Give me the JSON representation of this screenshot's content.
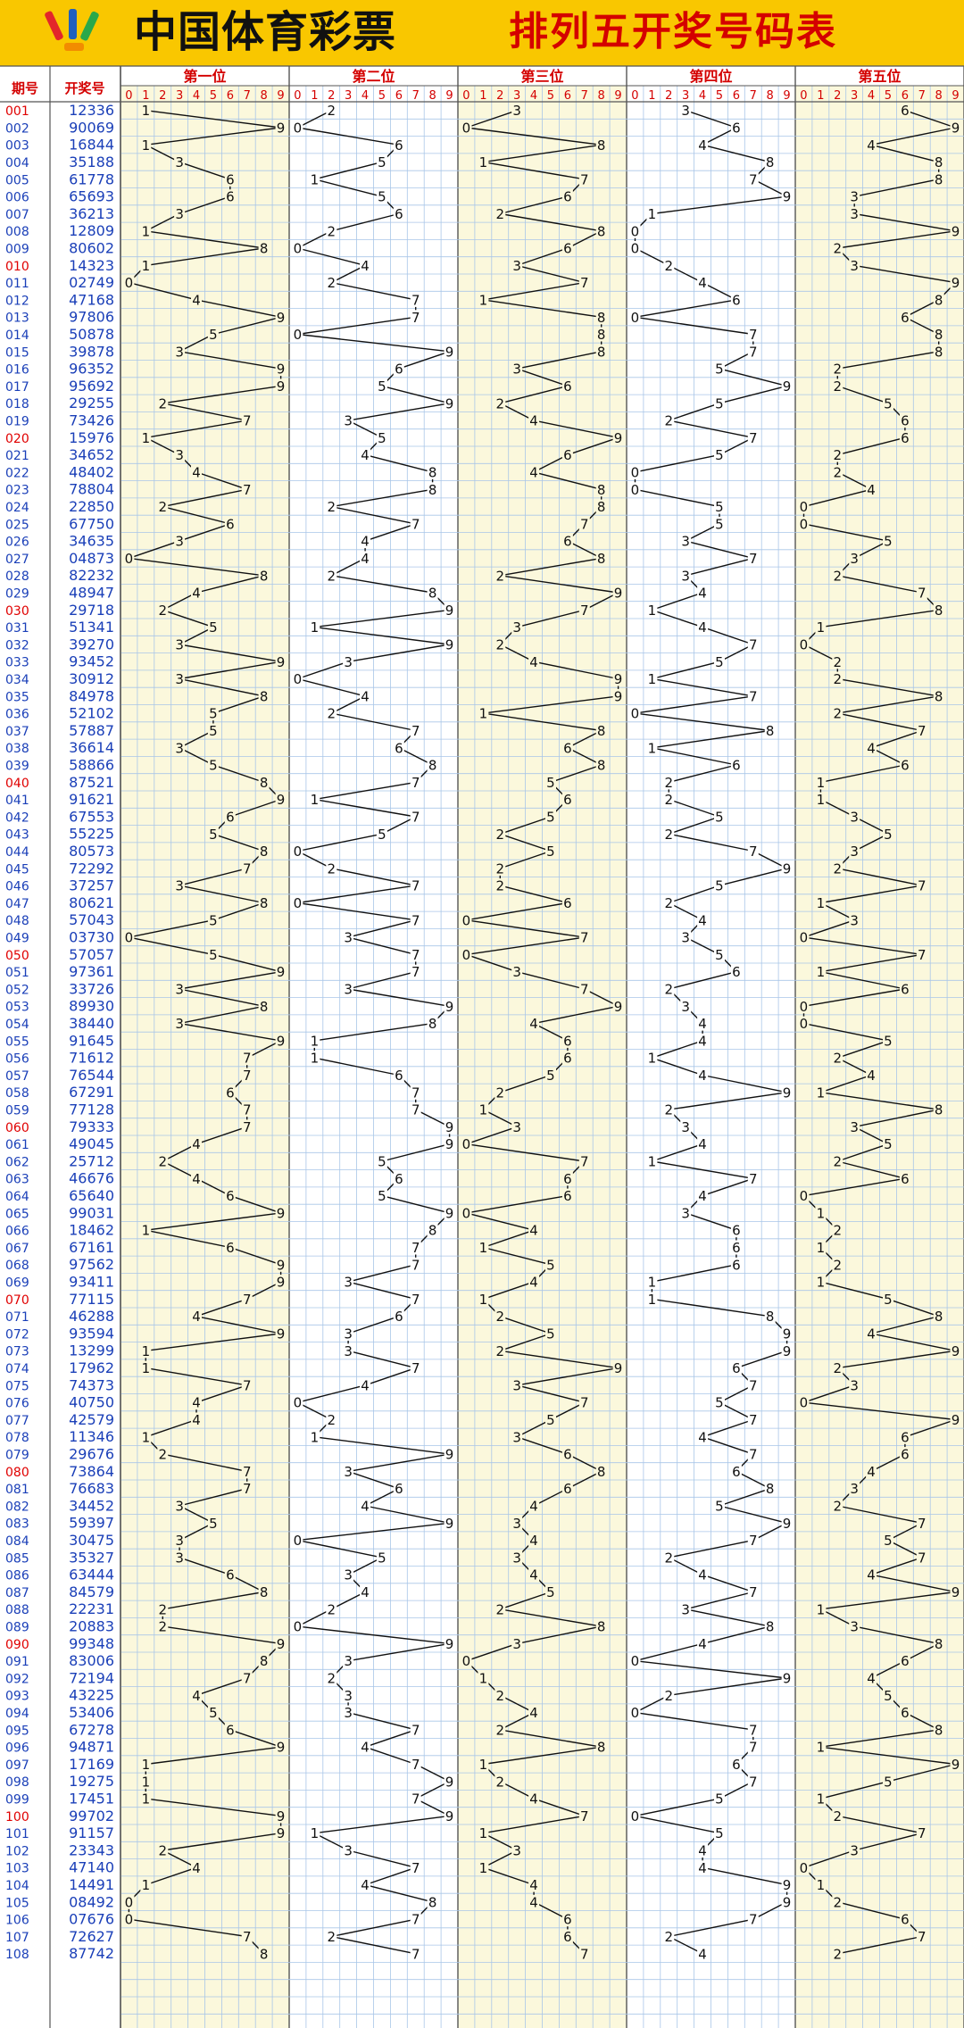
{
  "header": {
    "brand": "中国体育彩票",
    "title": "排列五开奖号码表"
  },
  "colors": {
    "header_bg": "#f9c700",
    "title_red": "#d40000",
    "issue_blue": "#1a3fb8",
    "issue_red": "#e00000",
    "grid": "#a9c6e8",
    "shade": "#fbf8dc"
  },
  "chart_data": {
    "type": "table",
    "columns": {
      "issue": "期号",
      "number": "开奖号",
      "positions": [
        "第一位",
        "第二位",
        "第三位",
        "第四位",
        "第五位"
      ],
      "digits": [
        "0",
        "1",
        "2",
        "3",
        "4",
        "5",
        "6",
        "7",
        "8",
        "9"
      ]
    },
    "draws": [
      [
        "001",
        "12336"
      ],
      [
        "002",
        "90069"
      ],
      [
        "003",
        "16844"
      ],
      [
        "004",
        "35188"
      ],
      [
        "005",
        "61778"
      ],
      [
        "006",
        "65693"
      ],
      [
        "007",
        "36213"
      ],
      [
        "008",
        "12809"
      ],
      [
        "009",
        "80602"
      ],
      [
        "010",
        "14323"
      ],
      [
        "011",
        "02749"
      ],
      [
        "012",
        "47168"
      ],
      [
        "013",
        "97806"
      ],
      [
        "014",
        "50878"
      ],
      [
        "015",
        "39878"
      ],
      [
        "016",
        "96352"
      ],
      [
        "017",
        "95692"
      ],
      [
        "018",
        "29255"
      ],
      [
        "019",
        "73426"
      ],
      [
        "020",
        "15976"
      ],
      [
        "021",
        "34652"
      ],
      [
        "022",
        "48402"
      ],
      [
        "023",
        "78804"
      ],
      [
        "024",
        "22850"
      ],
      [
        "025",
        "67750"
      ],
      [
        "026",
        "34635"
      ],
      [
        "027",
        "04873"
      ],
      [
        "028",
        "82232"
      ],
      [
        "029",
        "48947"
      ],
      [
        "030",
        "29718"
      ],
      [
        "031",
        "51341"
      ],
      [
        "032",
        "39270"
      ],
      [
        "033",
        "93452"
      ],
      [
        "034",
        "30912"
      ],
      [
        "035",
        "84978"
      ],
      [
        "036",
        "52102"
      ],
      [
        "037",
        "57887"
      ],
      [
        "038",
        "36614"
      ],
      [
        "039",
        "58866"
      ],
      [
        "040",
        "87521"
      ],
      [
        "041",
        "91621"
      ],
      [
        "042",
        "67553"
      ],
      [
        "043",
        "55225"
      ],
      [
        "044",
        "80573"
      ],
      [
        "045",
        "72292"
      ],
      [
        "046",
        "37257"
      ],
      [
        "047",
        "80621"
      ],
      [
        "048",
        "57043"
      ],
      [
        "049",
        "03730"
      ],
      [
        "050",
        "57057"
      ],
      [
        "051",
        "97361"
      ],
      [
        "052",
        "33726"
      ],
      [
        "053",
        "89930"
      ],
      [
        "054",
        "38440"
      ],
      [
        "055",
        "91645"
      ],
      [
        "056",
        "71612"
      ],
      [
        "057",
        "76544"
      ],
      [
        "058",
        "67291"
      ],
      [
        "059",
        "77128"
      ],
      [
        "060",
        "79333"
      ],
      [
        "061",
        "49045"
      ],
      [
        "062",
        "25712"
      ],
      [
        "063",
        "46676"
      ],
      [
        "064",
        "65640"
      ],
      [
        "065",
        "99031"
      ],
      [
        "066",
        "18462"
      ],
      [
        "067",
        "67161"
      ],
      [
        "068",
        "97562"
      ],
      [
        "069",
        "93411"
      ],
      [
        "070",
        "77115"
      ],
      [
        "071",
        "46288"
      ],
      [
        "072",
        "93594"
      ],
      [
        "073",
        "13299"
      ],
      [
        "074",
        "17962"
      ],
      [
        "075",
        "74373"
      ],
      [
        "076",
        "40750"
      ],
      [
        "077",
        "42579"
      ],
      [
        "078",
        "11346"
      ],
      [
        "079",
        "29676"
      ],
      [
        "080",
        "73864"
      ],
      [
        "081",
        "76683"
      ],
      [
        "082",
        "34452"
      ],
      [
        "083",
        "59397"
      ],
      [
        "084",
        "30475"
      ],
      [
        "085",
        "35327"
      ],
      [
        "086",
        "63444"
      ],
      [
        "087",
        "84579"
      ],
      [
        "088",
        "22231"
      ],
      [
        "089",
        "20883"
      ],
      [
        "090",
        "99348"
      ],
      [
        "091",
        "83006"
      ],
      [
        "092",
        "72194"
      ],
      [
        "093",
        "43225"
      ],
      [
        "094",
        "53406"
      ],
      [
        "095",
        "67278"
      ],
      [
        "096",
        "94871"
      ],
      [
        "097",
        "17169"
      ],
      [
        "098",
        "19275"
      ],
      [
        "099",
        "17451"
      ],
      [
        "100",
        "99702"
      ],
      [
        "101",
        "91157"
      ],
      [
        "102",
        "23343"
      ],
      [
        "103",
        "47140"
      ],
      [
        "104",
        "14491"
      ],
      [
        "105",
        "08492"
      ],
      [
        "106",
        "07676"
      ],
      [
        "107",
        "72627"
      ],
      [
        "108",
        "87742"
      ]
    ],
    "highlight_issues": [
      "001",
      "010",
      "020",
      "030",
      "040",
      "050",
      "060",
      "070",
      "080",
      "090",
      "100"
    ]
  }
}
